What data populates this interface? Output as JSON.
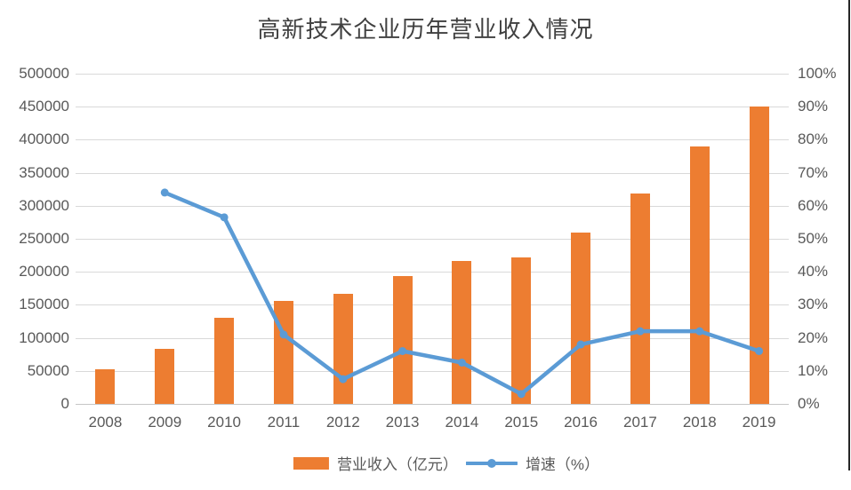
{
  "title": "高新技术企业历年营业收入情况",
  "colors": {
    "bar": "#ED7D31",
    "line": "#5B9BD5",
    "gridline": "#D9D9D9",
    "axis_text": "#595959",
    "title_text": "#404040"
  },
  "chart_data": {
    "type": "combo-bar-line",
    "title": "高新技术企业历年营业收入情况",
    "categories": [
      "2008",
      "2009",
      "2010",
      "2011",
      "2012",
      "2013",
      "2014",
      "2015",
      "2016",
      "2017",
      "2018",
      "2019"
    ],
    "series": [
      {
        "name": "营业收入（亿元）",
        "type": "bar",
        "axis": "left",
        "color": "#ED7D31",
        "values": [
          52000,
          84000,
          130000,
          156000,
          167000,
          194000,
          217000,
          222000,
          260000,
          318000,
          390000,
          450000
        ]
      },
      {
        "name": "增速（%）",
        "type": "line",
        "axis": "right",
        "color": "#5B9BD5",
        "values": [
          null,
          64,
          56.5,
          21,
          7.5,
          16,
          12.5,
          3,
          18,
          22,
          22,
          16
        ]
      }
    ],
    "left_axis": {
      "min": 0,
      "max": 500000,
      "step": 50000,
      "ticks": [
        "0",
        "50000",
        "100000",
        "150000",
        "200000",
        "250000",
        "300000",
        "350000",
        "400000",
        "450000",
        "500000"
      ]
    },
    "right_axis": {
      "min": 0,
      "max": 100,
      "step": 10,
      "ticks": [
        "0%",
        "10%",
        "20%",
        "30%",
        "40%",
        "50%",
        "60%",
        "70%",
        "80%",
        "90%",
        "100%"
      ]
    },
    "grid": "horizontal",
    "legend_position": "bottom"
  },
  "legend": {
    "bar_label": "营业收入（亿元）",
    "line_label": "增速（%）"
  }
}
